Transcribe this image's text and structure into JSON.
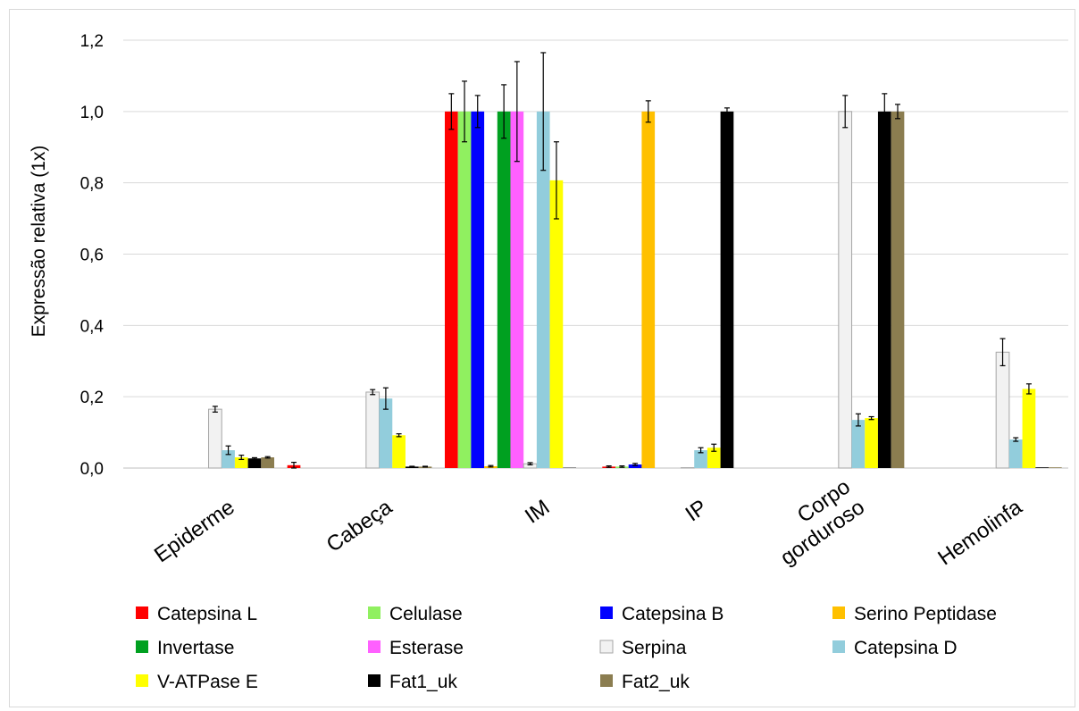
{
  "chart_data": {
    "type": "bar",
    "ylabel": "Expressão relativa (1x)",
    "ylim": [
      0,
      1.2
    ],
    "yticks": [
      "0,0",
      "0,2",
      "0,4",
      "0,6",
      "0,8",
      "1,0",
      "1,2"
    ],
    "ytick_values": [
      0,
      0.2,
      0.4,
      0.6,
      0.8,
      1.0,
      1.2
    ],
    "grid": true,
    "legend_position": "bottom",
    "categories": [
      [
        "Epiderme"
      ],
      [
        "Cabeça"
      ],
      [
        "IM"
      ],
      [
        "IP"
      ],
      [
        "Corpo",
        "gorduroso"
      ],
      [
        "Hemolinfa"
      ]
    ],
    "series": [
      {
        "name": "Catepsina L",
        "color": "#ff0000",
        "values": [
          0,
          0.008,
          1.0,
          0.004,
          0,
          0
        ],
        "errors": [
          0,
          0.008,
          0.05,
          0.002,
          0,
          0
        ]
      },
      {
        "name": "Celulase",
        "color": "#90f060",
        "values": [
          0,
          0,
          1.0,
          0.004,
          0,
          0
        ],
        "errors": [
          0,
          0,
          0.085,
          0.002,
          0,
          0
        ]
      },
      {
        "name": "Catepsina B",
        "color": "#0000ff",
        "values": [
          0,
          0,
          1.0,
          0.01,
          0,
          0
        ],
        "errors": [
          0,
          0,
          0.045,
          0.003,
          0,
          0
        ]
      },
      {
        "name": "Serino Peptidase",
        "color": "#ffc000",
        "values": [
          0,
          0,
          0.005,
          1.0,
          0,
          0
        ],
        "errors": [
          0,
          0,
          0.002,
          0.03,
          0,
          0
        ]
      },
      {
        "name": "Invertase",
        "color": "#00a020",
        "values": [
          0,
          0,
          1.0,
          0,
          0,
          0
        ],
        "errors": [
          0,
          0,
          0.075,
          0,
          0,
          0
        ]
      },
      {
        "name": "Esterase",
        "color": "#ff60ff",
        "values": [
          0,
          0,
          1.0,
          0,
          0,
          0
        ],
        "errors": [
          0,
          0,
          0.14,
          0,
          0,
          0
        ]
      },
      {
        "name": "Serpina",
        "color": "#f2f2f2",
        "values": [
          0.165,
          0.213,
          0.012,
          0.001,
          1.0,
          0.325
        ],
        "errors": [
          0.008,
          0.007,
          0.003,
          0,
          0.045,
          0.038
        ]
      },
      {
        "name": "Catepsina D",
        "color": "#92cddc",
        "values": [
          0.05,
          0.195,
          1.0,
          0.05,
          0.135,
          0.08
        ],
        "errors": [
          0.012,
          0.03,
          0.165,
          0.007,
          0.017,
          0.005
        ]
      },
      {
        "name": "V-ATPase E",
        "color": "#ffff00",
        "values": [
          0.03,
          0.092,
          0.807,
          0.057,
          0.14,
          0.222
        ],
        "errors": [
          0.006,
          0.004,
          0.108,
          0.01,
          0.004,
          0.014
        ]
      },
      {
        "name": "Fat1_uk",
        "color": "#000000",
        "values": [
          0.027,
          0.004,
          0.001,
          1.0,
          1.0,
          0.002
        ],
        "errors": [
          0.002,
          0.001,
          0,
          0.01,
          0.05,
          0
        ]
      },
      {
        "name": "Fat2_uk",
        "color": "#8b7d50",
        "values": [
          0.03,
          0.004,
          0,
          0,
          1.0,
          0.002
        ],
        "errors": [
          0.002,
          0.001,
          0,
          0,
          0.02,
          0
        ]
      }
    ]
  }
}
